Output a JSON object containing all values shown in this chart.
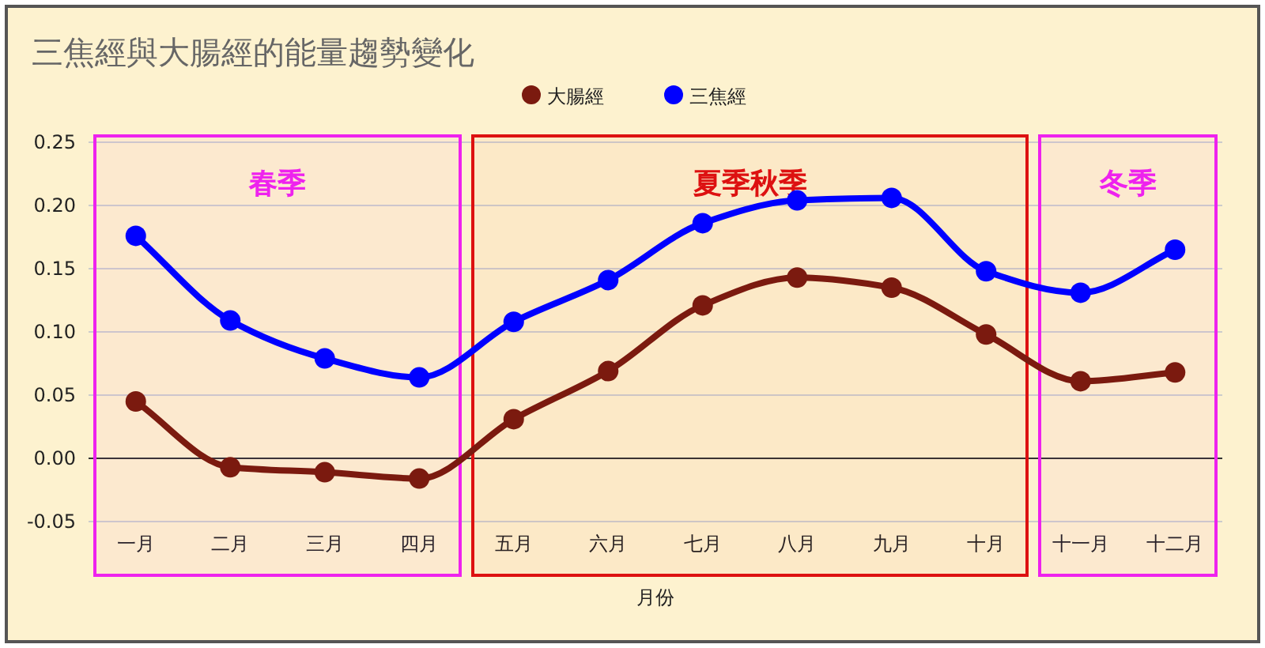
{
  "chart_data": {
    "type": "line",
    "title": "三焦經與大腸經的能量趨勢變化",
    "xlabel": "月份",
    "categories": [
      "一月",
      "二月",
      "三月",
      "四月",
      "五月",
      "六月",
      "七月",
      "八月",
      "九月",
      "十月",
      "十一月",
      "十二月"
    ],
    "series": [
      {
        "name": "大腸經",
        "color": "#7b1a0f",
        "values": [
          0.045,
          -0.007,
          -0.011,
          -0.016,
          0.031,
          0.069,
          0.121,
          0.143,
          0.135,
          0.098,
          0.061,
          0.068
        ]
      },
      {
        "name": "三焦經",
        "color": "#0000ff",
        "values": [
          0.176,
          0.109,
          0.079,
          0.064,
          0.108,
          0.141,
          0.186,
          0.204,
          0.206,
          0.148,
          0.131,
          0.165
        ]
      }
    ],
    "ylim": [
      -0.05,
      0.25
    ],
    "yticks": [
      {
        "value": -0.05,
        "label": "-0.05"
      },
      {
        "value": 0,
        "label": "0.00"
      },
      {
        "value": 0.05,
        "label": "0.05"
      },
      {
        "value": 0.1,
        "label": "0.10"
      },
      {
        "value": 0.15,
        "label": "0.15"
      },
      {
        "value": 0.2,
        "label": "0.20"
      },
      {
        "value": 0.25,
        "label": "0.25"
      }
    ],
    "bands": [
      {
        "axis": "x",
        "from": "一月",
        "to": "四月",
        "label": "春季",
        "color": "#ee22ee"
      },
      {
        "axis": "x",
        "from": "五月",
        "to": "十月",
        "label": "夏季秋季",
        "color": "#dd1111"
      },
      {
        "axis": "x",
        "from": "十一月",
        "to": "十二月",
        "label": "冬季",
        "color": "#ee22ee"
      }
    ],
    "grid": "y",
    "legend": "top",
    "marker": "circle",
    "line_style": "solid"
  }
}
